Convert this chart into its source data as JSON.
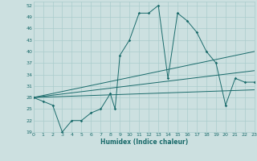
{
  "title": "",
  "xlabel": "Humidex (Indice chaleur)",
  "bg_color": "#cce0e0",
  "line_color": "#1a6b6b",
  "grid_color": "#aacccc",
  "xlim": [
    0,
    23
  ],
  "ylim": [
    19,
    53
  ],
  "yticks": [
    19,
    22,
    25,
    28,
    31,
    34,
    37,
    40,
    43,
    46,
    49,
    52
  ],
  "xticks": [
    0,
    1,
    2,
    3,
    4,
    5,
    6,
    7,
    8,
    9,
    10,
    11,
    12,
    13,
    14,
    15,
    16,
    17,
    18,
    19,
    20,
    21,
    22,
    23
  ],
  "series": [
    [
      0,
      28
    ],
    [
      1,
      27
    ],
    [
      2,
      26
    ],
    [
      3,
      19
    ],
    [
      4,
      22
    ],
    [
      5,
      22
    ],
    [
      6,
      24
    ],
    [
      7,
      25
    ],
    [
      8,
      29
    ],
    [
      8.5,
      25
    ],
    [
      9,
      39
    ],
    [
      10,
      43
    ],
    [
      11,
      50
    ],
    [
      12,
      50
    ],
    [
      13,
      52
    ],
    [
      14,
      33
    ],
    [
      15,
      50
    ],
    [
      16,
      48
    ],
    [
      17,
      45
    ],
    [
      18,
      40
    ],
    [
      19,
      37
    ],
    [
      20,
      26
    ],
    [
      21,
      33
    ],
    [
      22,
      32
    ],
    [
      23,
      32
    ]
  ],
  "line1": [
    [
      0,
      28
    ],
    [
      23,
      40
    ]
  ],
  "line2": [
    [
      0,
      28
    ],
    [
      23,
      35
    ]
  ],
  "line3": [
    [
      0,
      28
    ],
    [
      23,
      30
    ]
  ]
}
